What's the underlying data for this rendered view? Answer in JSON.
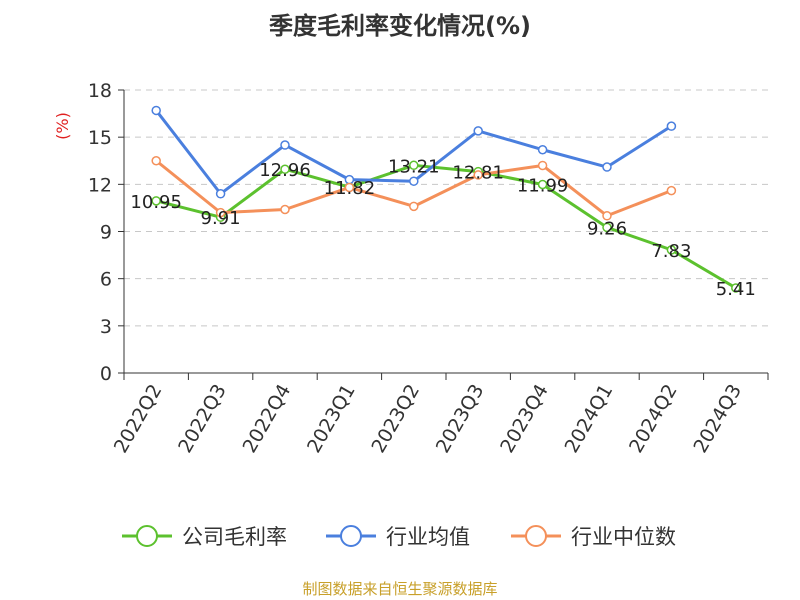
{
  "chart_data": {
    "type": "line",
    "title": "季度毛利率变化情况(%)",
    "ylabel": "(%)",
    "xlabel": "",
    "categories": [
      "2022Q2",
      "2022Q3",
      "2022Q4",
      "2023Q1",
      "2023Q2",
      "2023Q3",
      "2023Q4",
      "2024Q1",
      "2024Q2",
      "2024Q3"
    ],
    "ylim": [
      0,
      18
    ],
    "yticks": [
      0,
      3,
      6,
      9,
      12,
      15,
      18
    ],
    "grid": true,
    "legend_position": "bottom",
    "series": [
      {
        "name": "公司毛利率",
        "color": "#5cc12e",
        "show_labels": true,
        "values": [
          10.95,
          9.91,
          12.96,
          11.82,
          13.21,
          12.81,
          11.99,
          9.26,
          7.83,
          5.41
        ],
        "labels": [
          "10.95",
          "9.91",
          "12.96",
          "11.82",
          "13.21",
          "12.81",
          "11.99",
          "9.26",
          "7.83",
          "5.41"
        ]
      },
      {
        "name": "行业均值",
        "color": "#4a7fde",
        "show_labels": false,
        "values": [
          16.7,
          11.4,
          14.5,
          12.3,
          12.2,
          15.4,
          14.2,
          13.1,
          15.7,
          null
        ]
      },
      {
        "name": "行业中位数",
        "color": "#f4905a",
        "show_labels": false,
        "values": [
          13.5,
          10.2,
          10.4,
          11.8,
          10.6,
          12.6,
          13.2,
          10.0,
          11.6,
          null
        ]
      }
    ]
  },
  "footer": "制图数据来自恒生聚源数据库"
}
